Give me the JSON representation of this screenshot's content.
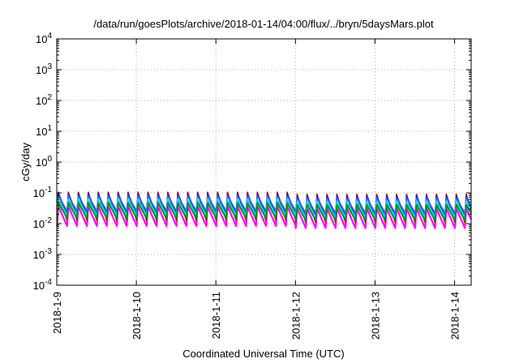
{
  "chart_data": {
    "type": "line",
    "title": "/data/run/goesPlots/archive/2018-01-14/04:00/flux/../bryn/5daysMars.plot",
    "xlabel": "Coordinated Universal Time (UTC)",
    "ylabel": "cGy/day",
    "yscale": "log",
    "ylim": [
      0.0001,
      10000
    ],
    "xlim": [
      "2018-01-09 00:00",
      "2018-01-14 05:00"
    ],
    "grid": true,
    "legend": "none",
    "x_ticks": [
      "2018-1-9",
      "2018-1-10",
      "2018-1-11",
      "2018-1-12",
      "2018-1-13",
      "2018-1-14"
    ],
    "y_ticks": [
      {
        "base": "10",
        "exp": "-4",
        "value": 0.0001
      },
      {
        "base": "10",
        "exp": "-3",
        "value": 0.001
      },
      {
        "base": "10",
        "exp": "-2",
        "value": 0.01
      },
      {
        "base": "10",
        "exp": "-1",
        "value": 0.1
      },
      {
        "base": "10",
        "exp": "0",
        "value": 1
      },
      {
        "base": "10",
        "exp": "1",
        "value": 10
      },
      {
        "base": "10",
        "exp": "2",
        "value": 100
      },
      {
        "base": "10",
        "exp": "3",
        "value": 1000
      },
      {
        "base": "10",
        "exp": "4",
        "value": 10000
      }
    ],
    "pattern": {
      "period_hours": 3,
      "first_peak": "2018-01-09 00:30"
    },
    "series": [
      {
        "color": "#ff00ff",
        "peak": 0.035,
        "trough": 0.008
      },
      {
        "color": "#cc0000",
        "peak": 0.1,
        "trough": 0.012
      },
      {
        "color": "#2222cc",
        "peak": 0.09,
        "trough": 0.02
      },
      {
        "color": "#3366ff",
        "peak": 0.075,
        "trough": 0.025
      },
      {
        "color": "#00aaaa",
        "peak": 0.05,
        "trough": 0.015
      },
      {
        "color": "#00e5e5",
        "peak": 0.06,
        "trough": 0.018
      },
      {
        "color": "#009000",
        "peak": 0.045,
        "trough": 0.014
      }
    ]
  }
}
